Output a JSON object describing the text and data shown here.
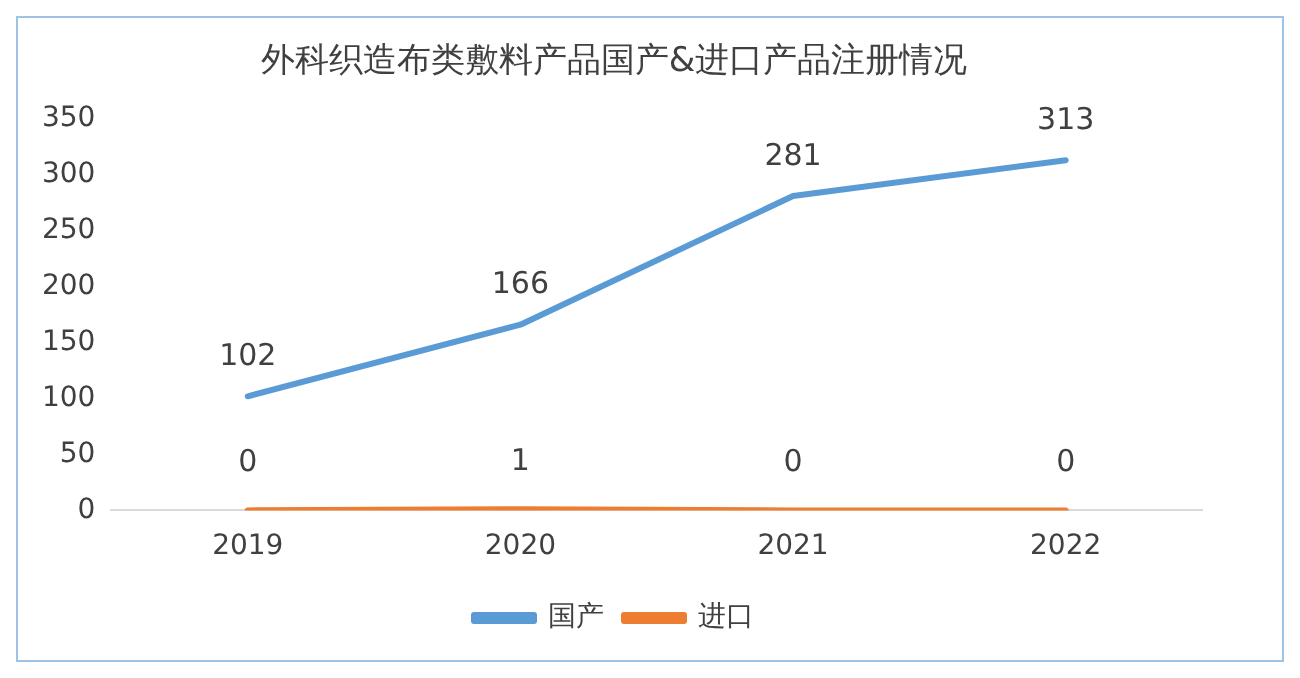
{
  "chart_data": {
    "type": "line",
    "title": "外科织造布类敷料产品国产&进口产品注册情况",
    "categories": [
      "2019",
      "2020",
      "2021",
      "2022"
    ],
    "series": [
      {
        "name": "国产",
        "color": "#5b9bd5",
        "values": [
          102,
          166,
          281,
          313
        ]
      },
      {
        "name": "进口",
        "color": "#ed7d31",
        "values": [
          0,
          1,
          0,
          0
        ]
      }
    ],
    "ylim": [
      0,
      350
    ],
    "yticks": [
      0,
      50,
      100,
      150,
      200,
      250,
      300,
      350
    ],
    "grid": false,
    "legend": "bottom",
    "marker": "none",
    "line_style": "solid",
    "data_labels": true
  }
}
